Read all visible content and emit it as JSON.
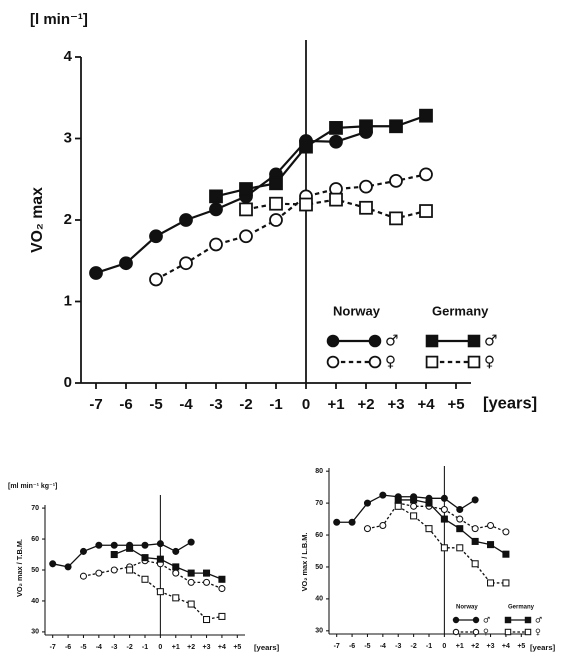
{
  "chart_data": [
    {
      "type": "line",
      "y_label": "VO₂ max",
      "y_unit": "[l min⁻¹]",
      "x_unit": "[years]",
      "xlim": [
        -7.5,
        5.5
      ],
      "xticks": [
        -7,
        -6,
        -5,
        -4,
        -3,
        -2,
        -1,
        0,
        {
          "value": 1,
          "label": "+1"
        },
        {
          "value": 2,
          "label": "+2"
        },
        {
          "value": 3,
          "label": "+3"
        },
        {
          "value": 4,
          "label": "+4"
        },
        {
          "value": 5,
          "label": "+5"
        }
      ],
      "ylim": [
        0,
        4
      ],
      "yticks": [
        0,
        1,
        2,
        3,
        4
      ],
      "vline": 0,
      "legend_groups": [
        "Norway",
        "Germany"
      ],
      "series": [
        {
          "name": "♂",
          "group": 0,
          "marker": "circle",
          "filled": true,
          "dashed": false,
          "color": "#111111",
          "x": [
            -7,
            -6,
            -5,
            -4,
            -3,
            -2,
            -1,
            0,
            1,
            2
          ],
          "values": [
            1.35,
            1.47,
            1.8,
            2.0,
            2.13,
            2.29,
            2.56,
            2.97,
            2.96,
            3.08
          ]
        },
        {
          "name": "♀",
          "group": 0,
          "marker": "circle",
          "filled": false,
          "dashed": true,
          "color": "#111111",
          "x": [
            -5,
            -4,
            -3,
            -2,
            -1,
            0,
            1,
            2,
            3,
            4
          ],
          "values": [
            1.27,
            1.47,
            1.7,
            1.8,
            2.0,
            2.29,
            2.38,
            2.41,
            2.48,
            2.56
          ]
        },
        {
          "name": "♂",
          "group": 1,
          "marker": "square",
          "filled": true,
          "dashed": false,
          "color": "#111111",
          "x": [
            -3,
            -2,
            -1,
            0,
            1,
            2,
            3,
            4
          ],
          "values": [
            2.29,
            2.38,
            2.45,
            2.9,
            3.13,
            3.15,
            3.15,
            3.28
          ]
        },
        {
          "name": "♀",
          "group": 1,
          "marker": "square",
          "filled": false,
          "dashed": true,
          "color": "#111111",
          "x": [
            -2,
            -1,
            0,
            1,
            2,
            3,
            4
          ],
          "values": [
            2.13,
            2.2,
            2.19,
            2.25,
            2.15,
            2.02,
            2.11
          ]
        }
      ]
    },
    {
      "type": "line",
      "y_label": "VO₂ max / T.B.M.",
      "y_unit": "[ml min⁻¹ kg⁻¹]",
      "x_unit": "[years]",
      "xlim": [
        -7.5,
        5.5
      ],
      "xticks": [
        -7,
        -6,
        -5,
        -4,
        -3,
        -2,
        -1,
        0,
        {
          "value": 1,
          "label": "+1"
        },
        {
          "value": 2,
          "label": "+2"
        },
        {
          "value": 3,
          "label": "+3"
        },
        {
          "value": 4,
          "label": "+4"
        },
        {
          "value": 5,
          "label": "+5"
        }
      ],
      "ylim": [
        29,
        71
      ],
      "yticks": [
        30,
        40,
        50,
        60,
        70
      ],
      "vline": 0,
      "series": [
        {
          "marker": "circle",
          "filled": true,
          "dashed": false,
          "color": "#111111",
          "x": [
            -7,
            -6,
            -5,
            -4,
            -3,
            -2,
            -1,
            0,
            1,
            2
          ],
          "values": [
            52,
            51,
            56,
            58,
            58,
            58,
            58,
            58.5,
            56,
            59
          ]
        },
        {
          "marker": "circle",
          "filled": false,
          "dashed": true,
          "color": "#111111",
          "x": [
            -5,
            -4,
            -3,
            -2,
            -1,
            0,
            1,
            2,
            3,
            4
          ],
          "values": [
            48,
            49,
            50,
            51,
            53,
            52,
            49,
            46,
            46,
            44
          ]
        },
        {
          "marker": "square",
          "filled": true,
          "dashed": false,
          "color": "#111111",
          "x": [
            -3,
            -2,
            -1,
            0,
            1,
            2,
            3,
            4
          ],
          "values": [
            55,
            57,
            54,
            53.5,
            51,
            49,
            49,
            47
          ]
        },
        {
          "marker": "square",
          "filled": false,
          "dashed": true,
          "color": "#111111",
          "x": [
            -2,
            -1,
            0,
            1,
            2,
            3,
            4
          ],
          "values": [
            50,
            47,
            43,
            41,
            39,
            34,
            35
          ]
        }
      ]
    },
    {
      "type": "line",
      "y_label": "VO₂ max / L.B.M.",
      "x_unit": "[years]",
      "xlim": [
        -7.5,
        5.5
      ],
      "xticks": [
        -7,
        -6,
        -5,
        -4,
        -3,
        -2,
        -1,
        0,
        {
          "value": 1,
          "label": "+1"
        },
        {
          "value": 2,
          "label": "+2"
        },
        {
          "value": 3,
          "label": "+3"
        },
        {
          "value": 4,
          "label": "+4"
        },
        {
          "value": 5,
          "label": "+5"
        }
      ],
      "ylim": [
        29,
        81
      ],
      "yticks": [
        30,
        40,
        50,
        60,
        70,
        80
      ],
      "vline": 0,
      "legend_groups": [
        "Norway",
        "Germany"
      ],
      "series": [
        {
          "name": "♂",
          "group": 0,
          "marker": "circle",
          "filled": true,
          "dashed": false,
          "color": "#111111",
          "x": [
            -7,
            -6,
            -5,
            -4,
            -3,
            -2,
            -1,
            0,
            1,
            2
          ],
          "values": [
            64,
            64,
            70,
            72.5,
            72,
            72,
            71.5,
            71.5,
            68,
            71
          ]
        },
        {
          "name": "♀",
          "group": 0,
          "marker": "circle",
          "filled": false,
          "dashed": true,
          "color": "#111111",
          "x": [
            -5,
            -4,
            -3,
            -2,
            -1,
            0,
            1,
            2,
            3,
            4
          ],
          "values": [
            62,
            63,
            70,
            69,
            69,
            68,
            65,
            62,
            63,
            61
          ]
        },
        {
          "name": "♂",
          "group": 1,
          "marker": "square",
          "filled": true,
          "dashed": false,
          "color": "#111111",
          "x": [
            -3,
            -2,
            -1,
            0,
            1,
            2,
            3,
            4
          ],
          "values": [
            71,
            71,
            70,
            65,
            62,
            58,
            57,
            54
          ]
        },
        {
          "name": "♀",
          "group": 1,
          "marker": "square",
          "filled": false,
          "dashed": true,
          "color": "#111111",
          "x": [
            -3,
            -2,
            -1,
            0,
            1,
            2,
            3,
            4
          ],
          "values": [
            69,
            66,
            62,
            56,
            56,
            51,
            45,
            45
          ]
        }
      ]
    }
  ]
}
